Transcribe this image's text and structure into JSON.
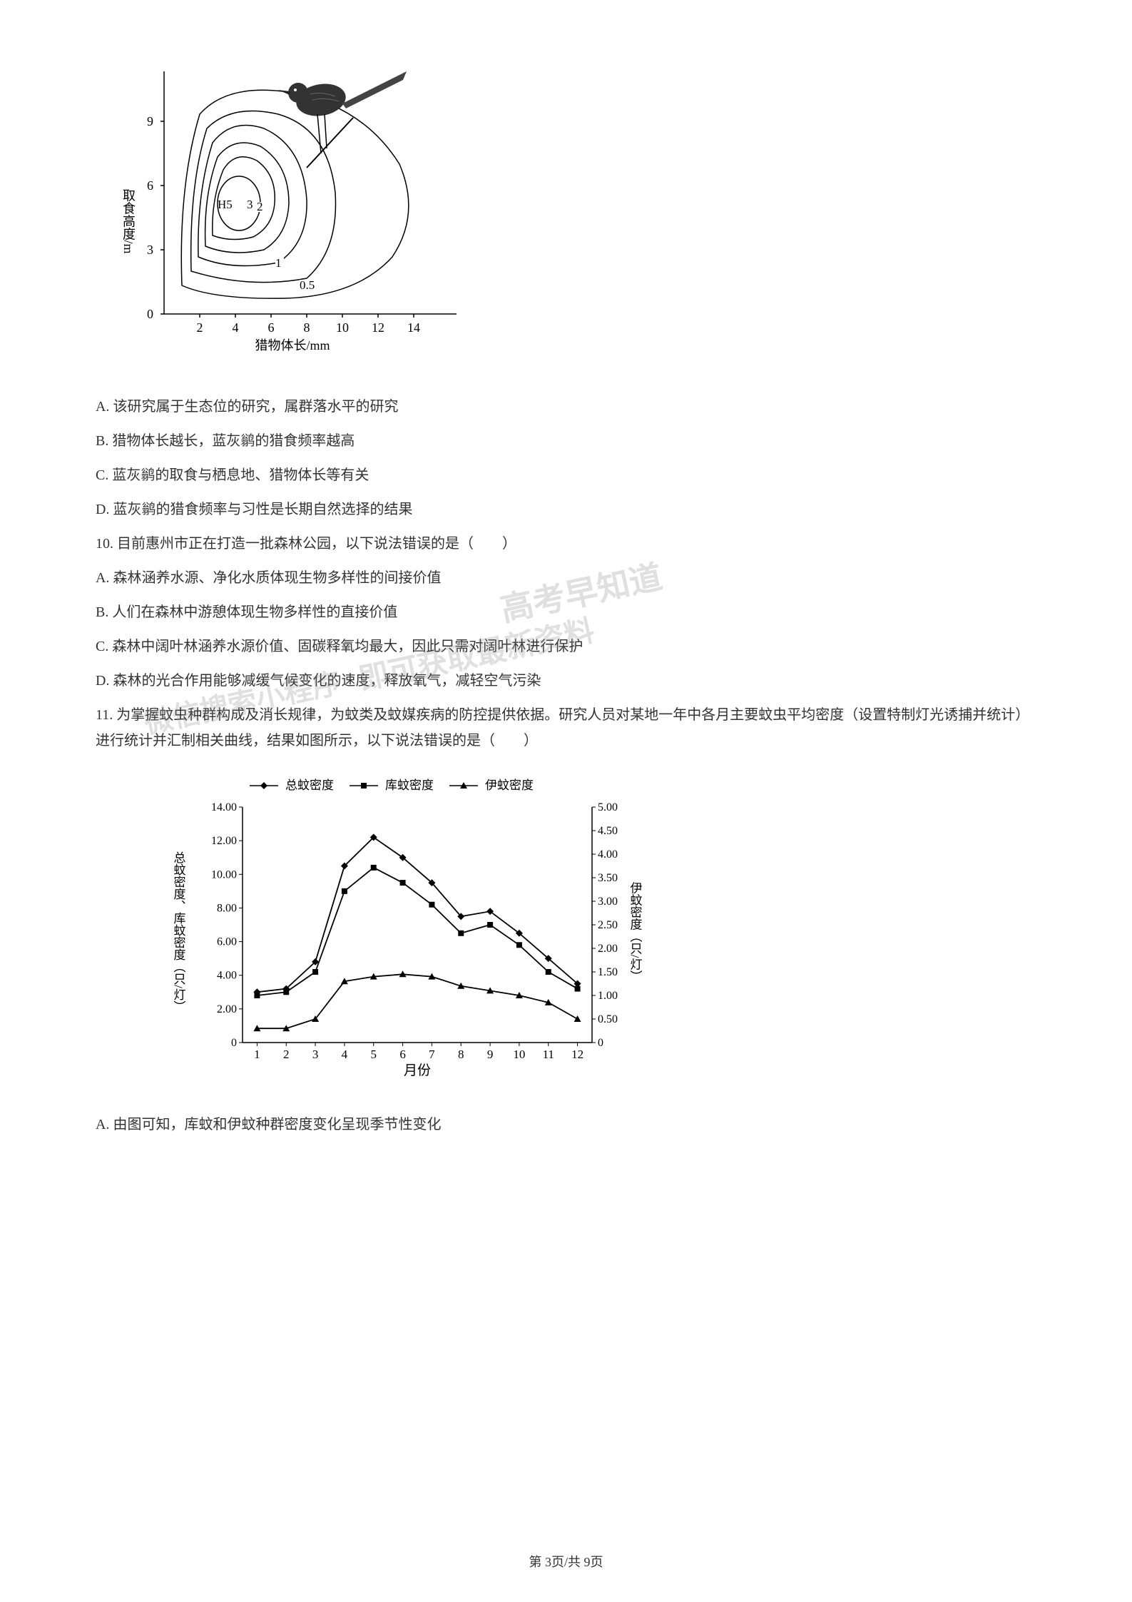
{
  "chart1": {
    "y_axis_label": "取食高度/m",
    "x_axis_label": "猎物体长/mm",
    "y_ticks": [
      0,
      3,
      6,
      9
    ],
    "x_ticks": [
      2,
      4,
      6,
      8,
      10,
      12,
      14
    ],
    "contour_labels": [
      "H5",
      "3",
      "2",
      "1",
      "0.5"
    ],
    "label_fontsize": 16,
    "line_color": "#000000",
    "background_color": "#ffffff"
  },
  "options_q1": {
    "a": "A. 该研究属于生态位的研究，属群落水平的研究",
    "b": "B. 猎物体长越长，蓝灰鹟的猎食频率越高",
    "c": "C. 蓝灰鹟的取食与栖息地、猎物体长等有关",
    "d": "D. 蓝灰鹟的猎食频率与习性是长期自然选择的结果"
  },
  "question10": {
    "text": "10. 目前惠州市正在打造一批森林公园，以下说法错误的是（　　）",
    "a": "A. 森林涵养水源、净化水质体现生物多样性的间接价值",
    "b": "B. 人们在森林中游憩体现生物多样性的直接价值",
    "c": "C. 森林中阔叶林涵养水源价值、固碳释氧均最大，因此只需对阔叶林进行保护",
    "d": "D. 森林的光合作用能够减缓气候变化的速度，释放氧气，减轻空气污染"
  },
  "question11": {
    "text": "11. 为掌握蚊虫种群构成及消长规律，为蚊类及蚊媒疾病的防控提供依据。研究人员对某地一年中各月主要蚊虫平均密度（设置特制灯光诱捕并统计）进行统计并汇制相关曲线，结果如图所示，以下说法错误的是（　　）"
  },
  "chart2": {
    "legend": [
      "总蚊密度",
      "库蚊密度",
      "伊蚊密度"
    ],
    "legend_markers": [
      "diamond",
      "square",
      "triangle"
    ],
    "x_label": "月份",
    "y_left_label": "总蚊密度、库蚊密度（只/灯）",
    "y_right_label": "伊蚊密度（只/灯）",
    "x_ticks": [
      1,
      2,
      3,
      4,
      5,
      6,
      7,
      8,
      9,
      10,
      11,
      12
    ],
    "y_left_ticks": [
      "0",
      "2.00",
      "4.00",
      "6.00",
      "8.00",
      "10.00",
      "12.00",
      "14.00"
    ],
    "y_right_ticks": [
      "0",
      "0.50",
      "1.00",
      "1.50",
      "2.00",
      "2.50",
      "3.00",
      "3.50",
      "4.00",
      "4.50",
      "5.00"
    ],
    "series_total": [
      3.0,
      3.2,
      4.8,
      10.5,
      12.2,
      11.0,
      9.5,
      7.5,
      7.8,
      6.5,
      5.0,
      3.5
    ],
    "series_culex": [
      2.8,
      3.0,
      4.2,
      9.0,
      10.4,
      9.5,
      8.2,
      6.5,
      7.0,
      5.8,
      4.2,
      3.2
    ],
    "series_aedes_right": [
      0.3,
      0.3,
      0.5,
      1.3,
      1.4,
      1.45,
      1.4,
      1.2,
      1.1,
      1.0,
      0.85,
      0.5
    ],
    "line_color": "#000000",
    "label_fontsize": 17
  },
  "options_q11": {
    "a": "A. 由图可知，库蚊和伊蚊种群密度变化呈现季节性变化"
  },
  "watermarks": {
    "w1": "高考早知道",
    "w2": "即可获取最新资料",
    "w3": "微信搜索小程序"
  },
  "footer": "第 3页/共 9页"
}
